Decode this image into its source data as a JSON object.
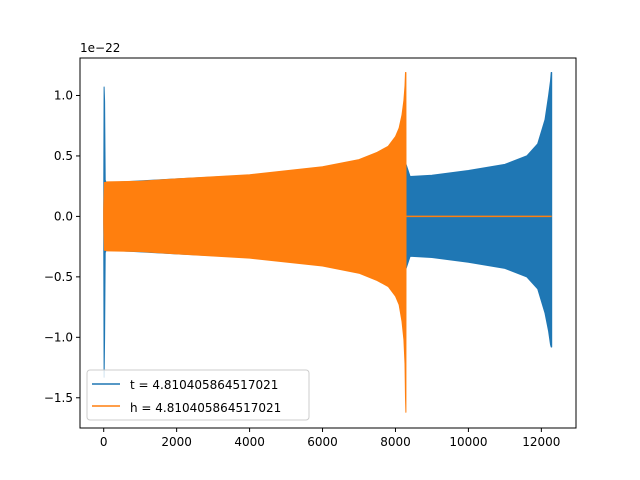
{
  "chart_data": {
    "type": "line",
    "title": "",
    "xlabel": "",
    "ylabel": "",
    "offset_text": "1e−22",
    "xlim": [
      -650,
      12950
    ],
    "ylim": [
      -1.75,
      1.31
    ],
    "y_scale_exponent": -22,
    "x_ticks": [
      0,
      2000,
      4000,
      6000,
      8000,
      10000,
      12000
    ],
    "x_tick_labels": [
      "0",
      "2000",
      "4000",
      "6000",
      "8000",
      "10000",
      "12000"
    ],
    "y_ticks": [
      1.0,
      0.5,
      0.0,
      -0.5,
      -1.0,
      -1.5
    ],
    "y_tick_labels": [
      "1.0",
      "0.5",
      "0.0",
      "−0.5",
      "−1.0",
      "−1.5"
    ],
    "grid": false,
    "legend_position": "lower-left",
    "series": [
      {
        "name": "t = 4.810405864517021",
        "color": "#1f77b4",
        "envelope": {
          "x": [
            0,
            12,
            25,
            40,
            60,
            100,
            500,
            2000,
            4000,
            6000,
            7800,
            8270,
            8400,
            9000,
            10000,
            11000,
            11600,
            11900,
            12100,
            12200,
            12250,
            12270,
            12283
          ],
          "upper": [
            0.1,
            1.07,
            0.95,
            0.3,
            0.285,
            0.28,
            0.285,
            0.31,
            0.34,
            0.38,
            0.43,
            0.45,
            0.33,
            0.34,
            0.38,
            0.43,
            0.5,
            0.6,
            0.8,
            1.0,
            1.12,
            1.19,
            1.19
          ],
          "lower": [
            -0.1,
            -1.33,
            -1.0,
            -0.3,
            -0.285,
            -0.28,
            -0.285,
            -0.31,
            -0.34,
            -0.38,
            -0.43,
            -0.45,
            -0.33,
            -0.34,
            -0.38,
            -0.43,
            -0.5,
            -0.6,
            -0.8,
            -0.95,
            -1.06,
            -1.08,
            -1.08
          ]
        }
      },
      {
        "name": "h = 4.810405864517021",
        "color": "#ff7f0e",
        "envelope": {
          "x": [
            0,
            20,
            50,
            100,
            1000,
            2000,
            4000,
            6000,
            7000,
            7500,
            7800,
            8000,
            8100,
            8180,
            8230,
            8260,
            8275,
            8285,
            8290
          ],
          "upper": [
            0.05,
            0.28,
            0.28,
            0.285,
            0.29,
            0.31,
            0.345,
            0.41,
            0.47,
            0.53,
            0.58,
            0.66,
            0.73,
            0.84,
            0.96,
            1.08,
            1.19,
            1.19,
            0.3
          ],
          "lower": [
            -0.05,
            -0.28,
            -0.28,
            -0.285,
            -0.29,
            -0.31,
            -0.345,
            -0.41,
            -0.47,
            -0.53,
            -0.58,
            -0.66,
            -0.73,
            -0.87,
            -1.02,
            -1.22,
            -1.5,
            -1.62,
            -0.3
          ]
        },
        "after": {
          "x": [
            8290,
            12283
          ],
          "y": [
            0,
            0
          ]
        }
      }
    ]
  }
}
